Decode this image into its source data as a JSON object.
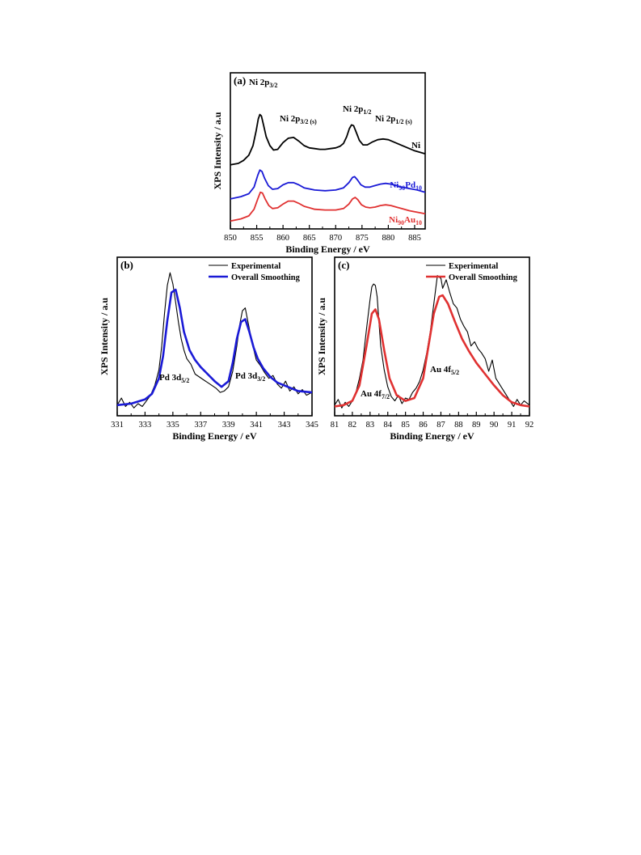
{
  "chart_data": [
    {
      "type": "line",
      "panel": "(a)",
      "xlabel": "Binding Energy / eV",
      "ylabel": "XPS Intensity / a.u",
      "xlim": [
        850,
        887
      ],
      "xticks": [
        850,
        855,
        860,
        865,
        870,
        875,
        880,
        885
      ],
      "ylim": [
        0,
        100
      ],
      "series": [
        {
          "name": "Ni",
          "color": "#000000",
          "x": [
            850.0,
            851.5,
            852.5,
            853.5,
            854.3,
            854.9,
            855.3,
            855.6,
            855.9,
            856.3,
            856.8,
            857.5,
            858.2,
            859.0,
            860.0,
            861.0,
            862.0,
            863.0,
            864.0,
            865.0,
            866.0,
            867.0,
            868.0,
            869.0,
            870.0,
            870.8,
            871.5,
            872.1,
            872.6,
            873.0,
            873.4,
            873.9,
            874.5,
            875.2,
            876.0,
            877.0,
            878.0,
            879.0,
            880.0,
            881.0,
            882.0,
            883.0,
            884.0,
            885.0,
            886.0,
            887.0
          ],
          "y": [
            40.0,
            41.0,
            43.0,
            46.5,
            53.0,
            63.0,
            71.0,
            74.0,
            73.0,
            67.0,
            59.0,
            53.0,
            50.0,
            50.5,
            55.0,
            58.0,
            58.5,
            56.0,
            53.0,
            51.5,
            51.0,
            50.5,
            50.5,
            51.0,
            51.5,
            52.5,
            54.5,
            59.0,
            64.5,
            67.0,
            66.5,
            62.0,
            56.5,
            53.5,
            53.5,
            55.5,
            57.0,
            57.5,
            57.0,
            55.5,
            54.0,
            52.5,
            51.0,
            49.5,
            48.5,
            47.5
          ]
        },
        {
          "name": "Ni90Pd10",
          "color": "#1a1ad6",
          "x": [
            850.0,
            852.0,
            853.5,
            854.5,
            855.2,
            855.6,
            856.0,
            856.5,
            857.2,
            858.0,
            859.0,
            860.0,
            861.0,
            862.0,
            863.0,
            864.0,
            866.0,
            868.0,
            870.0,
            871.5,
            872.5,
            873.2,
            873.6,
            874.1,
            874.8,
            875.6,
            876.5,
            877.5,
            878.5,
            879.5,
            880.5,
            881.5,
            882.5,
            884.0,
            885.5,
            887.0
          ],
          "y": [
            17.0,
            18.5,
            20.5,
            25.0,
            33.0,
            36.5,
            35.5,
            31.0,
            26.0,
            23.5,
            24.0,
            26.5,
            28.0,
            28.0,
            26.5,
            24.5,
            23.0,
            22.5,
            23.0,
            24.5,
            28.0,
            31.5,
            32.0,
            30.0,
            26.5,
            25.0,
            25.0,
            26.0,
            27.0,
            27.5,
            27.0,
            26.0,
            25.0,
            24.0,
            23.0,
            21.5
          ]
        },
        {
          "name": "Ni90Au10",
          "color": "#e03131",
          "x": [
            850.0,
            852.0,
            853.5,
            854.5,
            855.2,
            855.7,
            856.1,
            856.6,
            857.3,
            858.0,
            859.0,
            860.0,
            861.0,
            862.0,
            863.0,
            864.0,
            866.0,
            868.0,
            870.0,
            871.5,
            872.5,
            873.2,
            873.7,
            874.2,
            874.9,
            875.7,
            876.5,
            877.5,
            878.5,
            879.5,
            880.5,
            881.5,
            882.5,
            884.0,
            885.5,
            887.0
          ],
          "y": [
            2.0,
            3.5,
            5.5,
            10.0,
            17.0,
            21.5,
            21.0,
            17.0,
            12.5,
            10.5,
            11.0,
            13.5,
            15.5,
            15.5,
            14.0,
            12.0,
            10.0,
            9.5,
            9.5,
            10.5,
            13.5,
            17.0,
            18.0,
            16.5,
            13.0,
            11.5,
            11.0,
            11.5,
            12.5,
            13.0,
            12.5,
            11.5,
            10.5,
            9.0,
            8.0,
            7.0
          ]
        }
      ],
      "annotations": [
        {
          "main": "Ni 2p",
          "sub": "3/2",
          "tail": ""
        },
        {
          "main": "Ni 2p",
          "sub": "3/2 (s)",
          "tail": ""
        },
        {
          "main": "Ni 2p",
          "sub": "1/2",
          "tail": ""
        },
        {
          "main": "Ni 2p",
          "sub": "1/2 (s)",
          "tail": ""
        }
      ],
      "series_labels": [
        {
          "main": "Ni",
          "sub": "",
          "tail": ""
        },
        {
          "main": "Ni",
          "sub": "90",
          "tail": "Pd",
          "sub2": "10"
        },
        {
          "main": "Ni",
          "sub": "90",
          "tail": "Au",
          "sub2": "10"
        }
      ]
    },
    {
      "type": "line",
      "panel": "(b)",
      "xlabel": "Binding Energy / eV",
      "ylabel": "XPS Intensity / a.u",
      "xlim": [
        331,
        345
      ],
      "xticks": [
        331,
        333,
        335,
        337,
        339,
        341,
        343,
        345
      ],
      "ylim": [
        0,
        100
      ],
      "legend": [
        "Experimental",
        "Overall Smoothing"
      ],
      "series": [
        {
          "name": "Experimental",
          "color": "#000000",
          "x": [
            331.0,
            331.3,
            331.6,
            331.9,
            332.2,
            332.5,
            332.8,
            333.1,
            333.4,
            333.7,
            334.0,
            334.2,
            334.4,
            334.6,
            334.8,
            335.0,
            335.2,
            335.4,
            335.6,
            335.8,
            336.0,
            336.3,
            336.6,
            336.9,
            337.2,
            337.5,
            337.8,
            338.1,
            338.4,
            338.7,
            339.0,
            339.3,
            339.6,
            339.8,
            340.0,
            340.2,
            340.4,
            340.6,
            340.8,
            341.0,
            341.3,
            341.6,
            341.9,
            342.2,
            342.5,
            342.8,
            343.1,
            343.4,
            343.7,
            344.0,
            344.3,
            344.6,
            345.0
          ],
          "y": [
            3.0,
            8.0,
            2.0,
            5.0,
            1.0,
            4.0,
            2.0,
            6.0,
            10.0,
            17.0,
            28.0,
            45.0,
            68.0,
            88.0,
            97.0,
            89.0,
            76.0,
            62.0,
            50.0,
            42.0,
            36.0,
            32.0,
            25.0,
            23.0,
            21.0,
            19.0,
            17.0,
            15.0,
            12.0,
            13.0,
            16.0,
            27.0,
            45.0,
            60.0,
            70.0,
            72.0,
            62.0,
            52.0,
            43.0,
            35.0,
            31.0,
            26.0,
            22.0,
            24.0,
            18.0,
            15.0,
            20.0,
            13.0,
            16.0,
            11.0,
            14.0,
            10.0,
            12.0
          ]
        },
        {
          "name": "Overall Smoothing",
          "color": "#1a1ad6",
          "x": [
            331.0,
            332.0,
            333.0,
            333.5,
            334.0,
            334.3,
            334.6,
            334.9,
            335.2,
            335.5,
            335.8,
            336.2,
            336.6,
            337.0,
            337.5,
            338.0,
            338.5,
            339.0,
            339.3,
            339.6,
            339.9,
            340.2,
            340.5,
            340.8,
            341.1,
            341.5,
            342.0,
            342.5,
            343.0,
            343.5,
            344.0,
            345.0
          ],
          "y": [
            3.0,
            4.0,
            7.0,
            11.0,
            22.0,
            38.0,
            63.0,
            83.0,
            85.0,
            72.0,
            55.0,
            42.0,
            35.0,
            30.0,
            25.0,
            20.0,
            16.0,
            20.0,
            33.0,
            50.0,
            62.0,
            64.0,
            55.0,
            44.0,
            36.0,
            29.0,
            23.0,
            19.0,
            17.0,
            15.0,
            13.0,
            12.0
          ]
        }
      ],
      "annotations": [
        {
          "main": "Pd 3d",
          "sub": "5/2",
          "tail": ""
        },
        {
          "main": "Pd 3d",
          "sub": "3/2",
          "tail": ""
        }
      ]
    },
    {
      "type": "line",
      "panel": "(c)",
      "xlabel": "Binding Energy / eV",
      "ylabel": "XPS Intensity / a.u",
      "xlim": [
        81,
        92
      ],
      "xticks": [
        81,
        82,
        83,
        84,
        85,
        86,
        87,
        88,
        89,
        90,
        91,
        92
      ],
      "ylim": [
        0,
        100
      ],
      "legend": [
        "Experimental",
        "Overall Smoothing"
      ],
      "series": [
        {
          "name": "Experimental",
          "color": "#000000",
          "x": [
            81.0,
            81.2,
            81.4,
            81.6,
            81.8,
            82.0,
            82.2,
            82.4,
            82.6,
            82.8,
            83.0,
            83.1,
            83.2,
            83.3,
            83.4,
            83.5,
            83.6,
            83.8,
            84.0,
            84.2,
            84.4,
            84.6,
            84.8,
            85.0,
            85.2,
            85.4,
            85.6,
            85.8,
            86.0,
            86.2,
            86.4,
            86.6,
            86.8,
            87.0,
            87.1,
            87.3,
            87.5,
            87.7,
            87.9,
            88.1,
            88.3,
            88.5,
            88.7,
            88.9,
            89.1,
            89.3,
            89.5,
            89.7,
            89.9,
            90.1,
            90.3,
            90.5,
            90.7,
            90.9,
            91.1,
            91.3,
            91.5,
            91.7,
            92.0
          ],
          "y": [
            3.0,
            7.0,
            1.0,
            5.0,
            2.0,
            6.0,
            12.0,
            22.0,
            35.0,
            57.0,
            78.0,
            87.0,
            89.0,
            88.0,
            80.0,
            62.0,
            45.0,
            28.0,
            16.0,
            9.0,
            6.0,
            10.0,
            4.0,
            8.0,
            7.0,
            12.0,
            15.0,
            20.0,
            28.0,
            40.0,
            55.0,
            75.0,
            95.0,
            93.0,
            86.0,
            92.0,
            83.0,
            75.0,
            72.0,
            64.0,
            59.0,
            55.0,
            45.0,
            48.0,
            43.0,
            40.0,
            36.0,
            27.0,
            35.0,
            22.0,
            18.0,
            14.0,
            10.0,
            6.0,
            2.0,
            7.0,
            3.0,
            6.0,
            3.0
          ]
        },
        {
          "name": "Overall Smoothing",
          "color": "#e03131",
          "x": [
            81.0,
            81.5,
            82.0,
            82.4,
            82.8,
            83.1,
            83.3,
            83.5,
            83.8,
            84.1,
            84.5,
            85.0,
            85.5,
            86.0,
            86.3,
            86.6,
            86.9,
            87.1,
            87.4,
            87.8,
            88.2,
            88.6,
            89.0,
            89.5,
            90.0,
            90.5,
            91.0,
            91.5,
            92.0
          ],
          "y": [
            2.0,
            3.0,
            6.0,
            17.0,
            45.0,
            68.0,
            71.0,
            64.0,
            42.0,
            22.0,
            10.0,
            6.0,
            8.0,
            22.0,
            45.0,
            68.0,
            80.0,
            81.0,
            75.0,
            62.0,
            50.0,
            41.0,
            33.0,
            25.0,
            17.0,
            10.0,
            5.0,
            3.0,
            2.0
          ]
        }
      ],
      "annotations": [
        {
          "main": "Au 4f",
          "sub": "7/2",
          "tail": ""
        },
        {
          "main": "Au 4f",
          "sub": "5/2",
          "tail": ""
        }
      ]
    }
  ]
}
